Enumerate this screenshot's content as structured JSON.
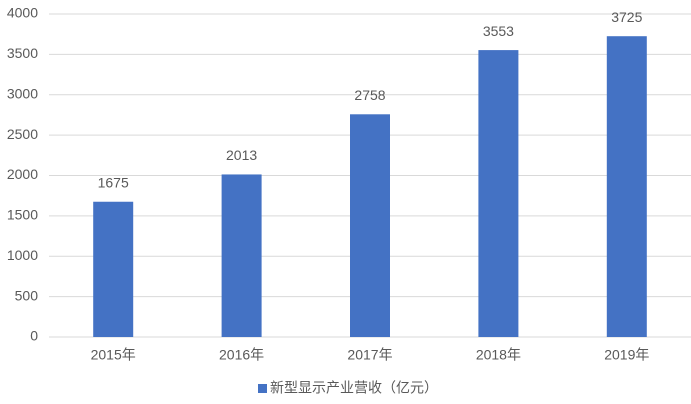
{
  "chart_data": {
    "type": "bar",
    "categories": [
      "2015年",
      "2016年",
      "2017年",
      "2018年",
      "2019年"
    ],
    "series": [
      {
        "name": "新型显示产业营收（亿元）",
        "color": "#4472c4",
        "values": [
          1675,
          2013,
          2758,
          3553,
          3725
        ]
      }
    ],
    "ylim": [
      0,
      4000
    ],
    "yticks": [
      0,
      500,
      1000,
      1500,
      2000,
      2500,
      3000,
      3500,
      4000
    ],
    "grid": true,
    "legend": "bottom",
    "data_labels": true
  }
}
